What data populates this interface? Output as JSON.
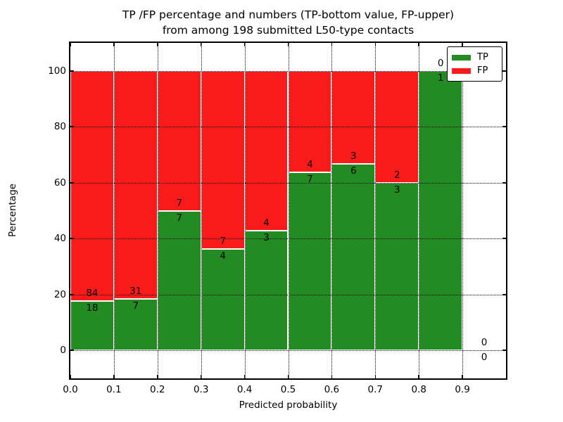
{
  "title": {
    "line1": "TP /FP percentage and numbers (TP-bottom value, FP-upper)",
    "line2": "from among 198 submitted L50-type contacts"
  },
  "colors": {
    "tp": "#228b22",
    "fp": "#fa1a1a",
    "grid": "#000000",
    "frame": "#000000",
    "background": "#ffffff"
  },
  "chart_data": {
    "type": "bar",
    "stacked": true,
    "normalized_to_percent": true,
    "title": "TP /FP percentage and numbers (TP-bottom value, FP-upper) from among 198 submitted L50-type contacts",
    "xlabel": "Predicted probability",
    "ylabel": "Percentage",
    "total_contacts": 198,
    "xlim": [
      0.0,
      1.0
    ],
    "ylim": [
      -10,
      110
    ],
    "xticks": [
      "0.0",
      "0.1",
      "0.2",
      "0.3",
      "0.4",
      "0.5",
      "0.6",
      "0.7",
      "0.8",
      "0.9"
    ],
    "yticks": [
      0,
      20,
      40,
      60,
      80,
      100
    ],
    "grid": "dotted, both axes",
    "legend_position": "upper right",
    "legend": [
      {
        "label": "TP",
        "color": "#228b22"
      },
      {
        "label": "FP",
        "color": "#fa1a1a"
      }
    ],
    "categories": [
      "0.0-0.1",
      "0.1-0.2",
      "0.2-0.3",
      "0.3-0.4",
      "0.4-0.5",
      "0.5-0.6",
      "0.6-0.7",
      "0.7-0.8",
      "0.8-0.9",
      "0.9-1.0"
    ],
    "series": [
      {
        "name": "TP",
        "values": [
          18,
          7,
          7,
          4,
          3,
          7,
          6,
          3,
          1,
          0
        ]
      },
      {
        "name": "FP",
        "values": [
          84,
          31,
          7,
          7,
          4,
          4,
          3,
          2,
          0,
          0
        ]
      }
    ],
    "bins": [
      {
        "x0": 0.0,
        "x1": 0.1,
        "tp": 18,
        "fp": 84
      },
      {
        "x0": 0.1,
        "x1": 0.2,
        "tp": 7,
        "fp": 31
      },
      {
        "x0": 0.2,
        "x1": 0.3,
        "tp": 7,
        "fp": 7
      },
      {
        "x0": 0.3,
        "x1": 0.4,
        "tp": 4,
        "fp": 7
      },
      {
        "x0": 0.4,
        "x1": 0.5,
        "tp": 3,
        "fp": 4
      },
      {
        "x0": 0.5,
        "x1": 0.6,
        "tp": 7,
        "fp": 4
      },
      {
        "x0": 0.6,
        "x1": 0.7,
        "tp": 6,
        "fp": 3
      },
      {
        "x0": 0.7,
        "x1": 0.8,
        "tp": 3,
        "fp": 2
      },
      {
        "x0": 0.8,
        "x1": 0.9,
        "tp": 1,
        "fp": 0
      },
      {
        "x0": 0.9,
        "x1": 1.0,
        "tp": 0,
        "fp": 0
      }
    ]
  }
}
